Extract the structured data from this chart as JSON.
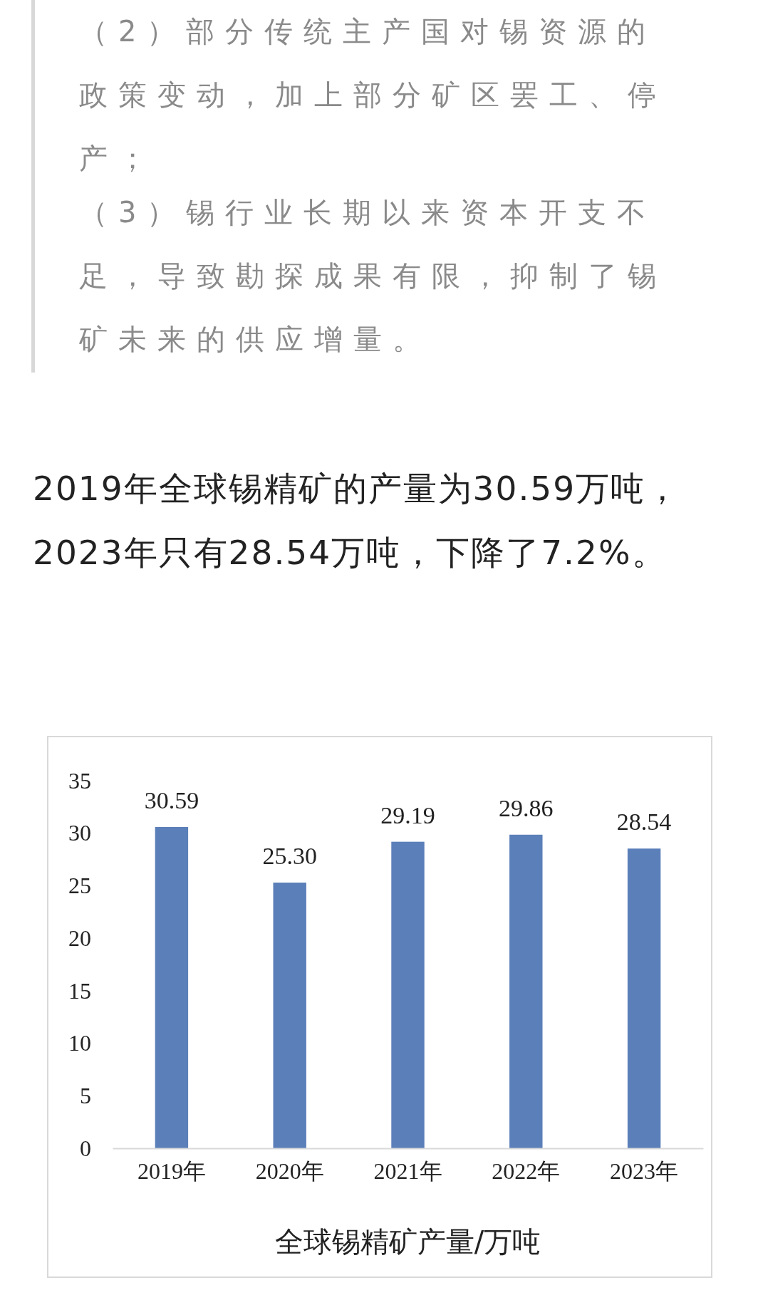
{
  "chart_data": {
    "type": "bar",
    "xlabel": "全球锡精矿产量/万吨",
    "annotations": [
      "（2）部分传统主产国对锡资源的政策变动，加上部分矿区罢工、停产；",
      "（3）锡行业长期以来资本开支不足，导致勘探成果有限，抑制了锡矿未来的供应增量。",
      "2019年全球锡精矿的产量为30.59万吨，2023年只有28.54万吨，下降了7.2%。"
    ],
    "categories": [
      "2019年",
      "2020年",
      "2021年",
      "2022年",
      "2023年"
    ],
    "values": [
      30.59,
      25.3,
      29.19,
      29.86,
      28.54
    ],
    "value_labels": [
      "30.59",
      "25.30",
      "29.19",
      "29.86",
      "28.54"
    ],
    "color": "#5b7fb9",
    "ylim": [
      0,
      35
    ],
    "yticks": [
      0,
      5,
      10,
      15,
      20,
      25,
      30,
      35
    ],
    "grid": false
  }
}
